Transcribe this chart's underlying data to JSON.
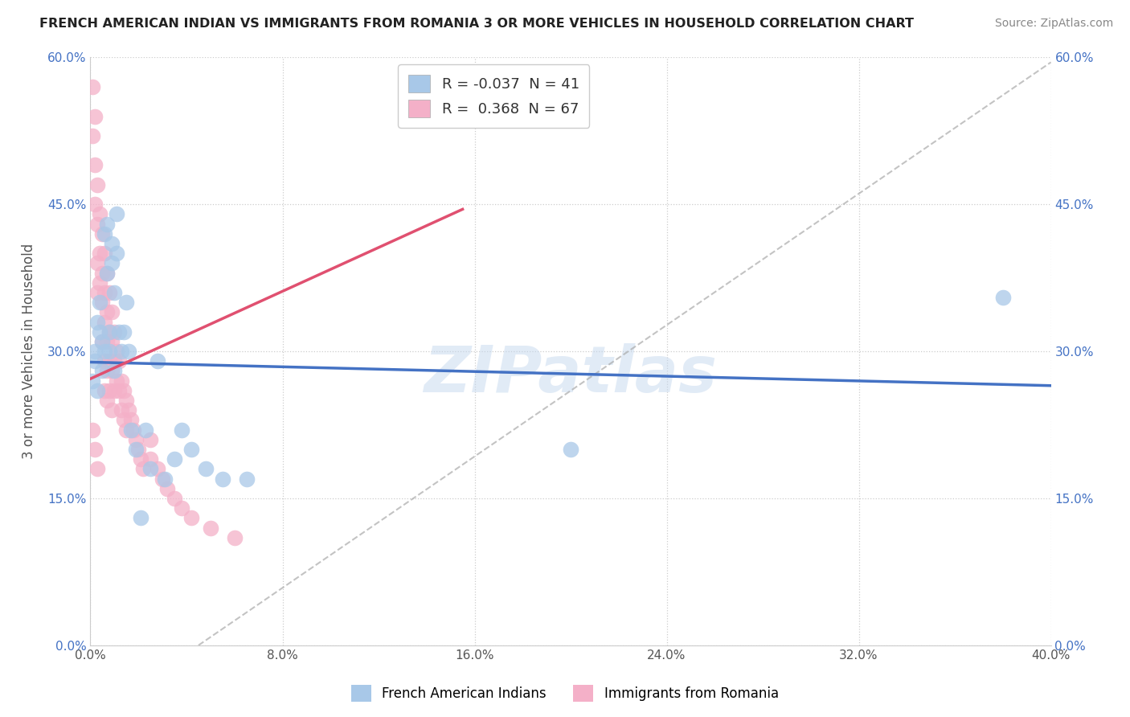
{
  "title": "FRENCH AMERICAN INDIAN VS IMMIGRANTS FROM ROMANIA 3 OR MORE VEHICLES IN HOUSEHOLD CORRELATION CHART",
  "source": "Source: ZipAtlas.com",
  "xlabel": "",
  "ylabel": "3 or more Vehicles in Household",
  "xlim": [
    0.0,
    0.4
  ],
  "ylim": [
    0.0,
    0.6
  ],
  "xticks": [
    0.0,
    0.08,
    0.16,
    0.24,
    0.32,
    0.4
  ],
  "yticks": [
    0.0,
    0.15,
    0.3,
    0.45,
    0.6
  ],
  "xtick_labels": [
    "0.0%",
    "8.0%",
    "16.0%",
    "24.0%",
    "32.0%",
    "40.0%"
  ],
  "ytick_labels": [
    "0.0%",
    "15.0%",
    "30.0%",
    "45.0%",
    "60.0%"
  ],
  "legend_labels": [
    "French American Indians",
    "Immigrants from Romania"
  ],
  "series1_color": "#a8c8e8",
  "series2_color": "#f4b0c8",
  "series1_R": -0.037,
  "series1_N": 41,
  "series2_R": 0.368,
  "series2_N": 67,
  "trendline1_color": "#4472c4",
  "trendline2_color": "#e05070",
  "trendline1_x": [
    0.0,
    0.4
  ],
  "trendline1_y": [
    0.289,
    0.265
  ],
  "trendline2_x": [
    0.0,
    0.155
  ],
  "trendline2_y": [
    0.272,
    0.445
  ],
  "refline_x": [
    0.045,
    0.4
  ],
  "refline_y": [
    0.0,
    0.595
  ],
  "watermark": "ZIPatlas",
  "background_color": "#ffffff",
  "grid_color": "#cccccc",
  "series1_x": [
    0.001,
    0.002,
    0.002,
    0.003,
    0.003,
    0.004,
    0.004,
    0.005,
    0.005,
    0.006,
    0.006,
    0.007,
    0.007,
    0.008,
    0.008,
    0.009,
    0.009,
    0.01,
    0.01,
    0.011,
    0.011,
    0.012,
    0.013,
    0.014,
    0.015,
    0.016,
    0.017,
    0.019,
    0.021,
    0.023,
    0.025,
    0.028,
    0.031,
    0.035,
    0.038,
    0.042,
    0.048,
    0.055,
    0.065,
    0.2,
    0.38
  ],
  "series1_y": [
    0.27,
    0.3,
    0.29,
    0.33,
    0.26,
    0.32,
    0.35,
    0.28,
    0.31,
    0.3,
    0.42,
    0.43,
    0.38,
    0.32,
    0.3,
    0.41,
    0.39,
    0.36,
    0.28,
    0.44,
    0.4,
    0.32,
    0.3,
    0.32,
    0.35,
    0.3,
    0.22,
    0.2,
    0.13,
    0.22,
    0.18,
    0.29,
    0.17,
    0.19,
    0.22,
    0.2,
    0.18,
    0.17,
    0.17,
    0.2,
    0.355
  ],
  "series2_x": [
    0.001,
    0.001,
    0.002,
    0.002,
    0.002,
    0.003,
    0.003,
    0.003,
    0.003,
    0.004,
    0.004,
    0.004,
    0.005,
    0.005,
    0.005,
    0.005,
    0.006,
    0.006,
    0.006,
    0.006,
    0.006,
    0.007,
    0.007,
    0.007,
    0.007,
    0.007,
    0.008,
    0.008,
    0.008,
    0.008,
    0.009,
    0.009,
    0.009,
    0.009,
    0.01,
    0.01,
    0.01,
    0.011,
    0.011,
    0.012,
    0.012,
    0.013,
    0.013,
    0.014,
    0.014,
    0.015,
    0.015,
    0.016,
    0.017,
    0.018,
    0.019,
    0.02,
    0.021,
    0.022,
    0.025,
    0.025,
    0.028,
    0.03,
    0.032,
    0.035,
    0.038,
    0.042,
    0.05,
    0.06,
    0.001,
    0.002,
    0.003
  ],
  "series2_y": [
    0.57,
    0.52,
    0.54,
    0.49,
    0.45,
    0.47,
    0.43,
    0.39,
    0.36,
    0.44,
    0.4,
    0.37,
    0.42,
    0.38,
    0.35,
    0.31,
    0.4,
    0.36,
    0.33,
    0.29,
    0.26,
    0.38,
    0.34,
    0.31,
    0.28,
    0.25,
    0.36,
    0.32,
    0.29,
    0.26,
    0.34,
    0.31,
    0.28,
    0.24,
    0.32,
    0.29,
    0.26,
    0.3,
    0.27,
    0.29,
    0.26,
    0.27,
    0.24,
    0.26,
    0.23,
    0.25,
    0.22,
    0.24,
    0.23,
    0.22,
    0.21,
    0.2,
    0.19,
    0.18,
    0.21,
    0.19,
    0.18,
    0.17,
    0.16,
    0.15,
    0.14,
    0.13,
    0.12,
    0.11,
    0.22,
    0.2,
    0.18
  ]
}
